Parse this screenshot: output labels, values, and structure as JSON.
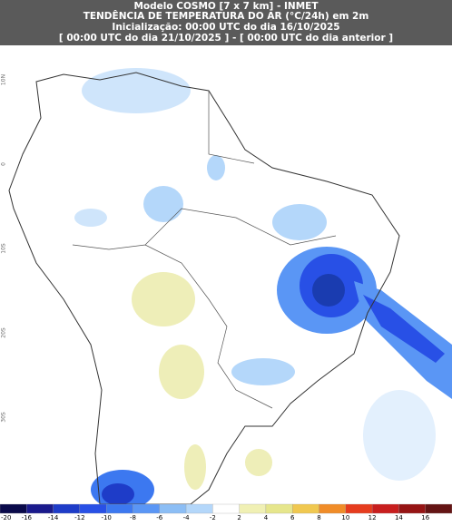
{
  "header": {
    "lines": [
      "Modelo COSMO [7 x 7 km] - INMET",
      "TENDÊNCIA DE TEMPERATURA DO AR (°C/24h) em 2m",
      "Inicialização: 00:00 UTC do dia 16/10/2025",
      "[ 00:00 UTC do dia 21/10/2025 ] - [ 00:00 UTC do dia anterior ]"
    ]
  },
  "map": {
    "lat_labels": [
      "10N",
      "0",
      "10S",
      "20S",
      "30S"
    ]
  },
  "colorbar": {
    "ticks": [
      -20,
      -16,
      -14,
      -12,
      -10,
      -8,
      -6,
      -4,
      -2,
      2,
      4,
      6,
      8,
      10,
      12,
      14,
      16
    ],
    "colors": [
      "#0a0a4a",
      "#1a1a8c",
      "#1e3cc8",
      "#2850e6",
      "#3c78f0",
      "#5a96f5",
      "#8cbef5",
      "#b4d7fa",
      "#ffffff",
      "#f0f0b4",
      "#e6e68c",
      "#f0c850",
      "#f08c28",
      "#e63c1e",
      "#c81e1e",
      "#961414",
      "#641414"
    ]
  }
}
